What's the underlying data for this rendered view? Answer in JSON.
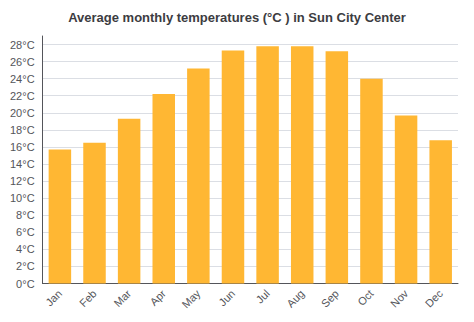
{
  "chart_data": {
    "type": "bar",
    "title": "Average monthly temperatures (°C ) in Sun City Center",
    "categories": [
      "Jan",
      "Feb",
      "Mar",
      "Apr",
      "May",
      "Jun",
      "Jul",
      "Aug",
      "Sep",
      "Oct",
      "Nov",
      "Dec"
    ],
    "values": [
      15.7,
      16.5,
      19.3,
      22.2,
      25.2,
      27.3,
      27.8,
      27.8,
      27.2,
      24.0,
      19.7,
      16.8
    ],
    "color": "#FFB733",
    "ylim": [
      0,
      29
    ],
    "yticks": [
      {
        "value": 0,
        "label": "0°C"
      },
      {
        "value": 2,
        "label": "2°C"
      },
      {
        "value": 4,
        "label": "4°C"
      },
      {
        "value": 6,
        "label": "6°C"
      },
      {
        "value": 8,
        "label": "8°C"
      },
      {
        "value": 10,
        "label": "10°C"
      },
      {
        "value": 12,
        "label": "12°C"
      },
      {
        "value": 14,
        "label": "14°C"
      },
      {
        "value": 16,
        "label": "16°C"
      },
      {
        "value": 18,
        "label": "18°C"
      },
      {
        "value": 20,
        "label": "20°C"
      },
      {
        "value": 22,
        "label": "22°C"
      },
      {
        "value": 24,
        "label": "24°C"
      },
      {
        "value": 26,
        "label": "26°C"
      },
      {
        "value": 28,
        "label": "28°C"
      }
    ],
    "grid": true
  }
}
